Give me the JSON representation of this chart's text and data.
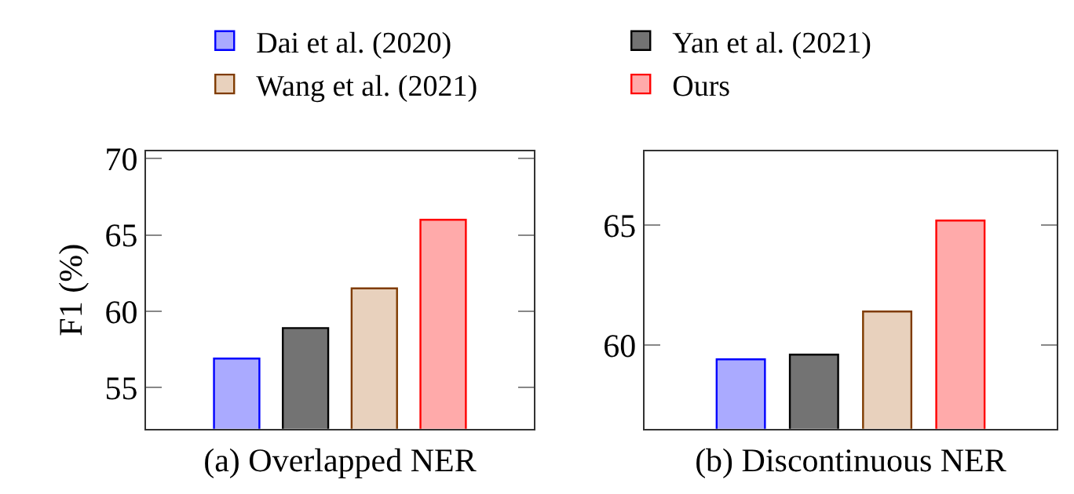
{
  "chart_data": [
    {
      "type": "bar",
      "xlabel": "(a) Overlapped NER",
      "ylabel": "F1 (%)",
      "categories": [
        null
      ],
      "series": [
        {
          "name": "Dai et al. (2020)",
          "color": "#aaaaff",
          "values": [
            56.9
          ]
        },
        {
          "name": "Yan et al. (2021)",
          "color": "#737373",
          "values": [
            58.9
          ]
        },
        {
          "name": "Wang et al. (2021)",
          "color": "#e8d1bd",
          "values": [
            61.5
          ]
        },
        {
          "name": "Ours",
          "color": "#ffaaaa",
          "values": [
            66.0
          ]
        }
      ],
      "ylim": [
        52.3,
        70.5
      ],
      "yticks": [
        55,
        60,
        65,
        70
      ],
      "tick_labels": "y",
      "legend": "top"
    },
    {
      "type": "bar",
      "xlabel": "(b) Discontinuous NER",
      "categories": [
        null
      ],
      "series": [
        {
          "name": "Dai et al. (2020)",
          "color": "#aaaaff",
          "values": [
            59.4
          ]
        },
        {
          "name": "Yan et al. (2021)",
          "color": "#737373",
          "values": [
            59.6
          ]
        },
        {
          "name": "Wang et al. (2021)",
          "color": "#e8d1bd",
          "values": [
            61.4
          ]
        },
        {
          "name": "Ours",
          "color": "#ffaaaa",
          "values": [
            65.2
          ]
        }
      ],
      "ylim": [
        56.5,
        68.1
      ],
      "yticks": [
        60,
        65
      ],
      "tick_labels": "y",
      "legend": "top"
    }
  ]
}
